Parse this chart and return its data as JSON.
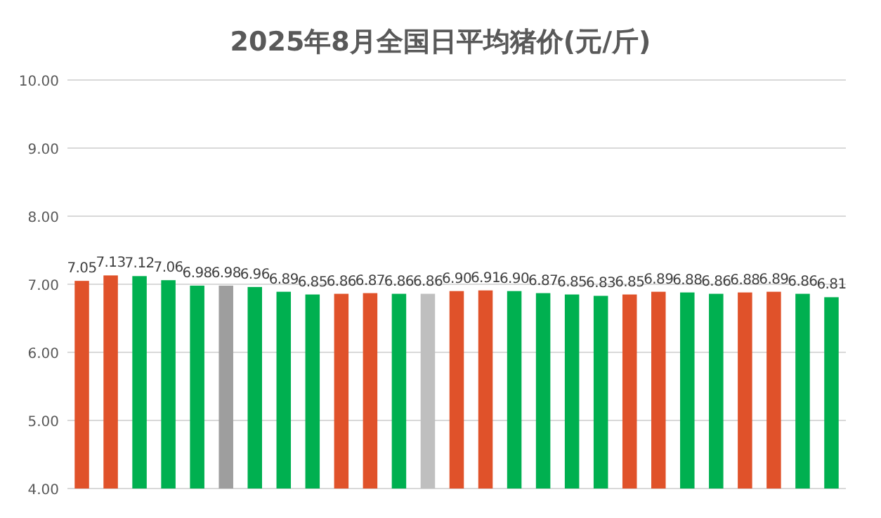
{
  "chart_data": {
    "type": "bar",
    "title": "2025年8月全国日平均猪价(元/斤)",
    "categories": [
      null,
      null,
      null,
      null,
      null,
      null,
      null,
      null,
      null,
      null,
      null,
      null,
      null,
      null,
      null,
      null,
      null,
      null,
      null,
      null,
      null,
      null,
      null,
      null,
      null,
      null,
      null
    ],
    "values": [
      7.05,
      7.13,
      7.12,
      7.06,
      6.98,
      6.98,
      6.96,
      6.89,
      6.85,
      6.86,
      6.87,
      6.86,
      6.86,
      6.9,
      6.91,
      6.9,
      6.87,
      6.85,
      6.83,
      6.85,
      6.89,
      6.88,
      6.86,
      6.88,
      6.89,
      6.86,
      6.81
    ],
    "value_labels": [
      "7.05",
      "7.13",
      "7.12",
      "7.06",
      "6.98",
      "6.98",
      "6.96",
      "6.89",
      "6.85",
      "6.86",
      "6.87",
      "6.86",
      "6.86",
      "6.90",
      "6.91",
      "6.90",
      "6.87",
      "6.85",
      "6.83",
      "6.85",
      "6.89",
      "6.88",
      "6.86",
      "6.88",
      "6.89",
      "6.86",
      "6.81"
    ],
    "colors": [
      "#e0522a",
      "#e0522a",
      "#00b050",
      "#00b050",
      "#00b050",
      "#9e9e9e",
      "#00b050",
      "#00b050",
      "#00b050",
      "#e0522a",
      "#e0522a",
      "#00b050",
      "#bfbfbf",
      "#e0522a",
      "#e0522a",
      "#00b050",
      "#00b050",
      "#00b050",
      "#00b050",
      "#e0522a",
      "#e0522a",
      "#00b050",
      "#00b050",
      "#e0522a",
      "#e0522a",
      "#00b050",
      "#00b050"
    ],
    "ylim": [
      4,
      10
    ],
    "yticks": [
      {
        "value": 4,
        "label": "4.00"
      },
      {
        "value": 5,
        "label": "5.00"
      },
      {
        "value": 6,
        "label": "6.00"
      },
      {
        "value": 7,
        "label": "7.00"
      },
      {
        "value": 8,
        "label": "8.00"
      },
      {
        "value": 9,
        "label": "9.00"
      },
      {
        "value": 10,
        "label": "10.00"
      }
    ],
    "grid": "y"
  }
}
